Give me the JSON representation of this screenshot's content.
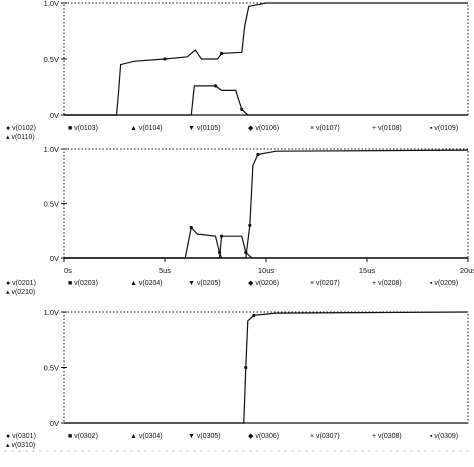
{
  "chart_data": [
    {
      "type": "line",
      "title": "",
      "xlabel": "",
      "ylabel": "",
      "xlim": [
        0,
        20
      ],
      "ylim": [
        0,
        1.0
      ],
      "x_unit": "us",
      "y_ticks": [
        "1.0V",
        "0.5V",
        "0V"
      ],
      "x_ticks": [],
      "grid": false,
      "legend_position": "bottom",
      "legend": [
        "v(0102)",
        "v(0103)",
        "v(0104)",
        "v(0105)",
        "v(0106)",
        "v(0107)",
        "v(0108)",
        "v(0109)",
        "v(0110)"
      ],
      "series": [
        {
          "values": [
            [
              0,
              0
            ],
            [
              2.6,
              0
            ],
            [
              2.7,
              0.2
            ],
            [
              2.8,
              0.45
            ],
            [
              3.5,
              0.48
            ],
            [
              5,
              0.5
            ],
            [
              6.1,
              0.52
            ],
            [
              6.5,
              0.58
            ],
            [
              6.8,
              0.5
            ],
            [
              7.6,
              0.5
            ],
            [
              7.8,
              0.55
            ],
            [
              8.8,
              0.56
            ],
            [
              8.95,
              0.8
            ],
            [
              9.15,
              0.97
            ],
            [
              10,
              1.0
            ],
            [
              20,
              1.0
            ]
          ]
        },
        {
          "values": [
            [
              0,
              0
            ],
            [
              6.3,
              0
            ],
            [
              6.45,
              0.26
            ],
            [
              7.5,
              0.26
            ],
            [
              7.8,
              0.22
            ],
            [
              8.5,
              0.22
            ],
            [
              8.8,
              0.05
            ],
            [
              9.1,
              0
            ],
            [
              20,
              0
            ]
          ]
        }
      ]
    },
    {
      "type": "line",
      "title": "",
      "xlabel": "",
      "ylabel": "",
      "xlim": [
        0,
        20
      ],
      "ylim": [
        0,
        1.0
      ],
      "x_unit": "us",
      "y_ticks": [
        "1.0V",
        "0.5V",
        "0V"
      ],
      "x_ticks": [
        "0s",
        "5us",
        "10us",
        "15us",
        "20us"
      ],
      "grid": false,
      "legend_position": "bottom",
      "legend": [
        "v(0201)",
        "v(0203)",
        "v(0204)",
        "v(0205)",
        "v(0206)",
        "v(0207)",
        "v(0208)",
        "v(0209)",
        "v(0210)"
      ],
      "series": [
        {
          "values": [
            [
              0,
              0
            ],
            [
              9.0,
              0
            ],
            [
              9.2,
              0.3
            ],
            [
              9.35,
              0.85
            ],
            [
              9.6,
              0.95
            ],
            [
              10.5,
              0.98
            ],
            [
              20,
              0.99
            ]
          ]
        },
        {
          "values": [
            [
              0,
              0
            ],
            [
              6.0,
              0
            ],
            [
              6.3,
              0.28
            ],
            [
              6.6,
              0.22
            ],
            [
              7.5,
              0.2
            ],
            [
              7.7,
              0.05
            ],
            [
              7.8,
              0
            ],
            [
              20,
              0
            ]
          ]
        },
        {
          "values": [
            [
              0,
              0
            ],
            [
              7.7,
              0
            ],
            [
              7.8,
              0.2
            ],
            [
              8.8,
              0.2
            ],
            [
              9.0,
              0.05
            ],
            [
              9.3,
              0
            ],
            [
              20,
              0
            ]
          ]
        }
      ]
    },
    {
      "type": "line",
      "title": "",
      "xlabel": "",
      "ylabel": "",
      "xlim": [
        0,
        20
      ],
      "ylim": [
        0,
        1.0
      ],
      "x_unit": "us",
      "y_ticks": [
        "1.0V",
        "0.5V",
        "0V"
      ],
      "x_ticks": [],
      "grid": false,
      "legend_position": "bottom",
      "legend": [
        "v(0301)",
        "v(0302)",
        "v(0304)",
        "v(0305)",
        "v(0306)",
        "v(0307)",
        "v(0308)",
        "v(0309)",
        "v(0310)"
      ],
      "series": [
        {
          "values": [
            [
              0,
              0
            ],
            [
              8.9,
              0
            ],
            [
              9.0,
              0.5
            ],
            [
              9.1,
              0.92
            ],
            [
              9.4,
              0.97
            ],
            [
              10.5,
              0.99
            ],
            [
              20,
              1.0
            ]
          ]
        }
      ]
    }
  ]
}
